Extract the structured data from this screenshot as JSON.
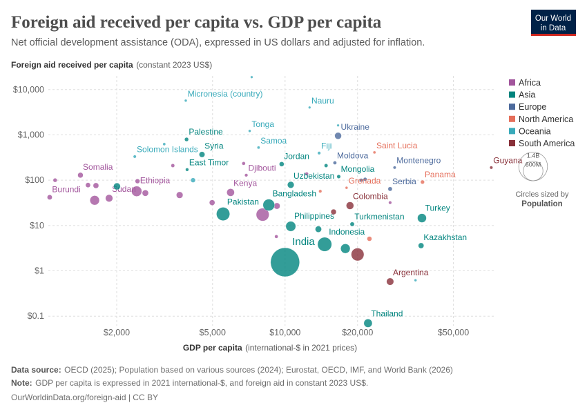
{
  "header": {
    "title": "Foreign aid received per capita vs. GDP per capita",
    "subtitle": "Net official development assistance (ODA), expressed in US dollars and adjusted for inflation.",
    "logo_line1": "Our World",
    "logo_line2": "in Data"
  },
  "chart_data": {
    "type": "scatter",
    "y_label": "Foreign aid received per capita",
    "y_label_note": "(constant 2023 US$)",
    "x_label": "GDP per capita",
    "x_label_note": "(international-$ in 2021 prices)",
    "xscale": "log",
    "yscale": "log",
    "grid": true,
    "xlim": [
      1000,
      75000
    ],
    "ylim": [
      0.05,
      20000
    ],
    "xticks": [
      {
        "value": 2000,
        "label": "$2,000"
      },
      {
        "value": 5000,
        "label": "$5,000"
      },
      {
        "value": 10000,
        "label": "$10,000"
      },
      {
        "value": 20000,
        "label": "$20,000"
      },
      {
        "value": 50000,
        "label": "$50,000"
      }
    ],
    "yticks": [
      {
        "value": 0.1,
        "label": "$0.1"
      },
      {
        "value": 1,
        "label": "$1"
      },
      {
        "value": 10,
        "label": "$10"
      },
      {
        "value": 100,
        "label": "$100"
      },
      {
        "value": 1000,
        "label": "$1,000"
      },
      {
        "value": 10000,
        "label": "$10,000"
      }
    ],
    "series": [
      {
        "name": "Africa",
        "color": "#a2559c",
        "labels": [
          "Somalia",
          "Burundi",
          "Sudan",
          "Ethiopia",
          "Kenya",
          "Djibouti",
          null,
          null,
          null,
          null,
          null,
          null,
          null,
          null,
          null,
          null,
          null,
          null,
          null,
          null,
          null
        ],
        "x": [
          1414,
          1054,
          1860,
          2420,
          5940,
          6900,
          8070,
          1620,
          1110,
          1520,
          1640,
          2440,
          2630,
          3650,
          4980,
          9250,
          3420,
          6730,
          12300,
          27300,
          9200
        ],
        "values": [
          129,
          42,
          40,
          57,
          53.7,
          129,
          17.4,
          36,
          100,
          78,
          76,
          95,
          52,
          47,
          32,
          27,
          210,
          234,
          138,
          32,
          5.7
        ],
        "sizes": [
          18000000,
          13000000,
          48000000,
          126000000,
          55000000,
          1100000,
          220000000,
          100000000,
          5000000,
          12000000,
          20000000,
          10000000,
          30000000,
          35000000,
          20000000,
          30000000,
          3000000,
          2000000,
          2000000,
          1000000,
          2000000
        ]
      },
      {
        "name": "Asia",
        "color": "#00847e",
        "labels": [
          "India",
          "Indonesia",
          "Pakistan",
          "Bangladesh",
          "Philippines",
          "Kazakhstan",
          "Turkey",
          "Turkmenistan",
          "Thailand",
          "Mongolia",
          "Uzbekistan",
          "Jordan",
          "Syria",
          "Palestine",
          "East Timor",
          null,
          null,
          null,
          null
        ],
        "x": [
          10000,
          14600,
          5530,
          8560,
          10560,
          36700,
          37000,
          19000,
          22100,
          16700,
          10560,
          9680,
          4520,
          3900,
          3920,
          2005,
          17800,
          13750,
          14800
        ],
        "values": [
          1.55,
          3.85,
          18,
          28.4,
          9.6,
          3.6,
          14.6,
          10.7,
          0.07,
          120,
          79,
          226,
          369,
          794,
          171,
          73,
          3.1,
          8.3,
          210
        ],
        "sizes": [
          1430000000,
          275000000,
          240000000,
          172000000,
          115000000,
          20000000,
          85000000,
          7000000,
          72000000,
          3400000,
          36000000,
          11000000,
          22000000,
          5000000,
          1300000,
          40000000,
          100000000,
          30000000,
          3000000
        ]
      },
      {
        "name": "Europe",
        "color": "#4c6a9c",
        "labels": [
          "Ukraine",
          "Moldova",
          "Montenegro",
          "Serbia",
          null,
          null
        ],
        "x": [
          16600,
          16100,
          28500,
          27300,
          20700,
          21500
        ],
        "values": [
          953,
          242,
          190,
          64,
          100,
          105
        ],
        "sizes": [
          38000000,
          2500000,
          600000,
          6700000,
          3200000,
          2800000
        ]
      },
      {
        "name": "North America",
        "color": "#e56e5a",
        "labels": [
          "Saint Lucia",
          "Grenada",
          "Panama",
          null,
          null
        ],
        "x": [
          23500,
          18000,
          37200,
          22400,
          14000
        ],
        "values": [
          410,
          68,
          91,
          5.1,
          57
        ],
        "sizes": [
          180000,
          120000,
          4400000,
          11000000,
          1000000
        ]
      },
      {
        "name": "Oceania",
        "color": "#38aaba",
        "labels": [
          "Micronesia (country)",
          "Nauru",
          "Tonga",
          "Samoa",
          "Fiji",
          "Solomon Islands",
          null,
          null,
          null,
          null,
          null
        ],
        "x": [
          3870,
          12640,
          7130,
          7760,
          13850,
          2377,
          7270,
          3150,
          16600,
          34800,
          4150
        ],
        "values": [
          5700,
          4020,
          1220,
          525,
          397,
          332,
          18800,
          625,
          1620,
          0.62,
          100
        ],
        "sizes": [
          110000,
          12000,
          100000,
          220000,
          930000,
          740000,
          11000,
          330000,
          18000,
          100000,
          10000000
        ]
      },
      {
        "name": "South America",
        "color": "#883039",
        "labels": [
          "Guyana",
          "Colombia",
          "Argentina",
          null,
          null
        ],
        "x": [
          71800,
          18600,
          27300,
          20000,
          15900
        ],
        "values": [
          190,
          27.5,
          0.58,
          2.3,
          20
        ],
        "sizes": [
          800000,
          52000000,
          46000000,
          215000000,
          18000000
        ]
      }
    ],
    "size_legend": {
      "title": "Circles sized by",
      "variable": "Population",
      "values": [
        1400000000,
        600000000
      ],
      "value_labels": [
        "1.4B",
        "600M"
      ]
    }
  },
  "footer": {
    "source_label": "Data source:",
    "source": "OECD (2025); Population based on various sources (2024); Eurostat, OECD, IMF, and World Bank (2026)",
    "note_label": "Note:",
    "note": "GDP per capita is expressed in 2021 international-$, and foreign aid in constant 2023 US$.",
    "url": "OurWorldinData.org/foreign-aid | CC BY"
  }
}
